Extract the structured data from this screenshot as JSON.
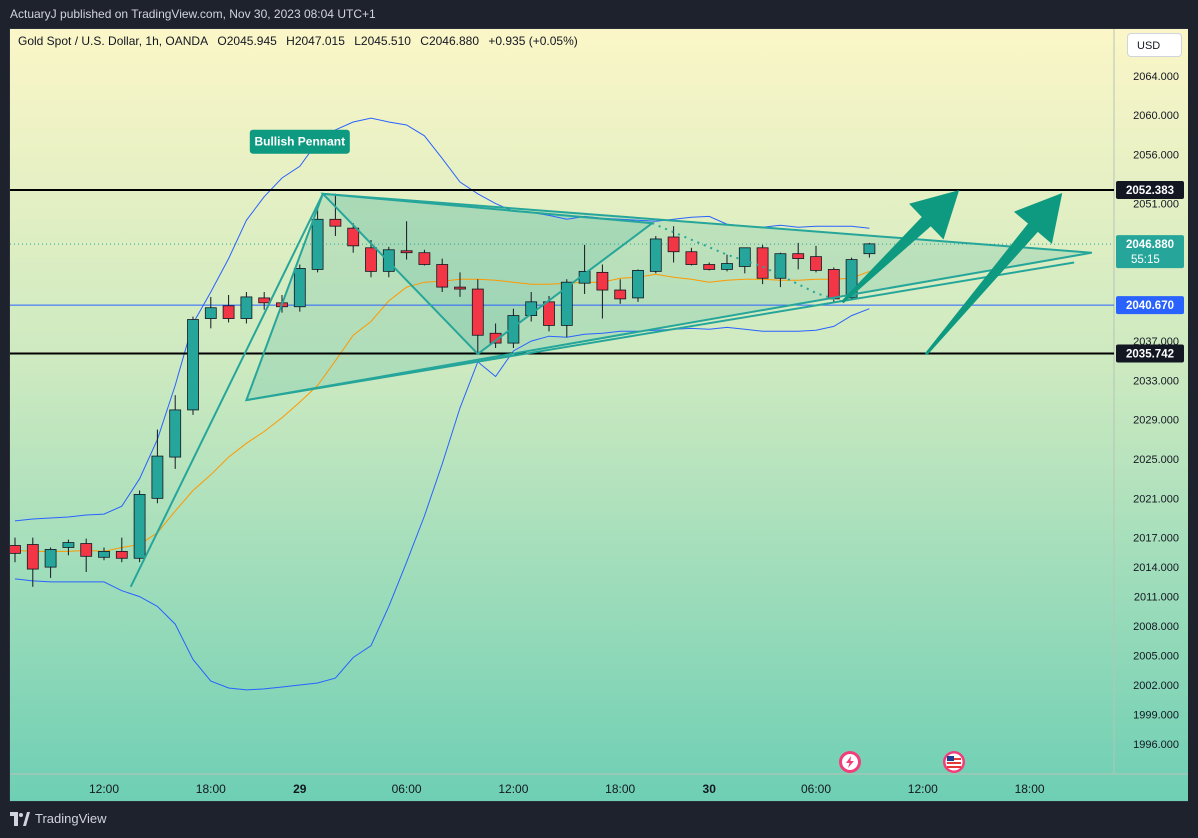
{
  "header": {
    "publish_text": "ActuaryJ published on TradingView.com, Nov 30, 2023 08:04 UTC+1"
  },
  "legend": {
    "symbol": "Gold Spot / U.S. Dollar, 1h, OANDA",
    "open": "O2045.945",
    "high": "H2047.015",
    "low": "L2045.510",
    "close": "C2046.880",
    "change": "+0.935 (+0.05%)"
  },
  "currency_button": "USD",
  "footer": {
    "logo_text": "TradingView"
  },
  "chart_data": {
    "type": "candlestick",
    "ylim": [
      1993.5,
      2068.5
    ],
    "y_ticks": [
      "2064.000",
      "2060.000",
      "2056.000",
      "2051.000",
      "2047.000",
      "2037.000",
      "2033.000",
      "2029.000",
      "2025.000",
      "2021.000",
      "2017.000",
      "2014.000",
      "2011.000",
      "2008.000",
      "2005.000",
      "2002.000",
      "1999.000",
      "1996.000"
    ],
    "y_tick_values": [
      2064,
      2060,
      2056,
      2051,
      2047,
      2037,
      2033,
      2029,
      2025,
      2021,
      2017,
      2014,
      2011,
      2008,
      2005,
      2002,
      1999,
      1996
    ],
    "x_tick_labels": [
      "12:00",
      "18:00",
      "29",
      "06:00",
      "12:00",
      "18:00",
      "30",
      "06:00",
      "12:00",
      "18:00"
    ],
    "x_tick_index": [
      5,
      11,
      16,
      22,
      28,
      34,
      39,
      45,
      51,
      57
    ],
    "candles": [
      {
        "o": 2016.2,
        "h": 2017.0,
        "l": 2014.5,
        "c": 2015.4
      },
      {
        "o": 2016.3,
        "h": 2017.0,
        "l": 2012.0,
        "c": 2013.8
      },
      {
        "o": 2014.0,
        "h": 2016.0,
        "l": 2012.9,
        "c": 2015.8
      },
      {
        "o": 2016.0,
        "h": 2016.8,
        "l": 2015.2,
        "c": 2016.5
      },
      {
        "o": 2016.4,
        "h": 2016.9,
        "l": 2013.5,
        "c": 2015.1
      },
      {
        "o": 2015.0,
        "h": 2016.0,
        "l": 2014.7,
        "c": 2015.6
      },
      {
        "o": 2015.6,
        "h": 2017.0,
        "l": 2014.5,
        "c": 2014.9
      },
      {
        "o": 2014.9,
        "h": 2021.8,
        "l": 2014.5,
        "c": 2021.4
      },
      {
        "o": 2021.0,
        "h": 2028.0,
        "l": 2020.5,
        "c": 2025.3
      },
      {
        "o": 2025.2,
        "h": 2031.5,
        "l": 2024.0,
        "c": 2030.0
      },
      {
        "o": 2030.0,
        "h": 2039.5,
        "l": 2029.5,
        "c": 2039.2
      },
      {
        "o": 2039.3,
        "h": 2041.5,
        "l": 2038.3,
        "c": 2040.4
      },
      {
        "o": 2040.6,
        "h": 2041.7,
        "l": 2038.9,
        "c": 2039.3
      },
      {
        "o": 2039.3,
        "h": 2042.0,
        "l": 2038.8,
        "c": 2041.5
      },
      {
        "o": 2041.4,
        "h": 2042.0,
        "l": 2040.2,
        "c": 2040.9
      },
      {
        "o": 2040.9,
        "h": 2041.7,
        "l": 2039.9,
        "c": 2040.5
      },
      {
        "o": 2040.5,
        "h": 2044.8,
        "l": 2040.0,
        "c": 2044.4
      },
      {
        "o": 2044.3,
        "h": 2050.4,
        "l": 2044.0,
        "c": 2049.4
      },
      {
        "o": 2049.4,
        "h": 2052.0,
        "l": 2047.7,
        "c": 2048.7
      },
      {
        "o": 2048.5,
        "h": 2049.0,
        "l": 2046.0,
        "c": 2046.7
      },
      {
        "o": 2046.5,
        "h": 2047.3,
        "l": 2043.5,
        "c": 2044.1
      },
      {
        "o": 2044.1,
        "h": 2046.6,
        "l": 2043.5,
        "c": 2046.3
      },
      {
        "o": 2046.2,
        "h": 2049.2,
        "l": 2045.3,
        "c": 2046.0
      },
      {
        "o": 2046.0,
        "h": 2046.3,
        "l": 2044.7,
        "c": 2044.8
      },
      {
        "o": 2044.8,
        "h": 2045.4,
        "l": 2042.0,
        "c": 2042.5
      },
      {
        "o": 2042.5,
        "h": 2044.0,
        "l": 2041.5,
        "c": 2042.3
      },
      {
        "o": 2042.3,
        "h": 2043.3,
        "l": 2035.8,
        "c": 2037.6
      },
      {
        "o": 2037.8,
        "h": 2038.8,
        "l": 2036.3,
        "c": 2036.8
      },
      {
        "o": 2036.8,
        "h": 2040.3,
        "l": 2036.3,
        "c": 2039.6
      },
      {
        "o": 2039.6,
        "h": 2042.0,
        "l": 2039.0,
        "c": 2041.0
      },
      {
        "o": 2041.0,
        "h": 2041.6,
        "l": 2038.0,
        "c": 2038.6
      },
      {
        "o": 2038.6,
        "h": 2043.3,
        "l": 2037.4,
        "c": 2043.0
      },
      {
        "o": 2042.9,
        "h": 2046.8,
        "l": 2041.8,
        "c": 2044.1
      },
      {
        "o": 2044.0,
        "h": 2044.8,
        "l": 2039.3,
        "c": 2042.2
      },
      {
        "o": 2042.2,
        "h": 2043.3,
        "l": 2040.8,
        "c": 2041.3
      },
      {
        "o": 2041.4,
        "h": 2044.3,
        "l": 2041.0,
        "c": 2044.2
      },
      {
        "o": 2044.1,
        "h": 2047.7,
        "l": 2043.9,
        "c": 2047.4
      },
      {
        "o": 2047.6,
        "h": 2048.7,
        "l": 2045.0,
        "c": 2046.1
      },
      {
        "o": 2046.1,
        "h": 2046.5,
        "l": 2044.7,
        "c": 2044.8
      },
      {
        "o": 2044.8,
        "h": 2045.0,
        "l": 2044.2,
        "c": 2044.3
      },
      {
        "o": 2044.3,
        "h": 2045.8,
        "l": 2044.1,
        "c": 2044.9
      },
      {
        "o": 2044.6,
        "h": 2046.5,
        "l": 2043.9,
        "c": 2046.5
      },
      {
        "o": 2046.5,
        "h": 2046.8,
        "l": 2042.8,
        "c": 2043.4
      },
      {
        "o": 2043.4,
        "h": 2046.0,
        "l": 2042.5,
        "c": 2045.9
      },
      {
        "o": 2045.9,
        "h": 2047.0,
        "l": 2044.3,
        "c": 2045.4
      },
      {
        "o": 2045.6,
        "h": 2046.7,
        "l": 2044.0,
        "c": 2044.2
      },
      {
        "o": 2044.3,
        "h": 2044.5,
        "l": 2041.0,
        "c": 2041.3
      },
      {
        "o": 2041.4,
        "h": 2045.5,
        "l": 2041.2,
        "c": 2045.3
      },
      {
        "o": 2045.9,
        "h": 2047.0,
        "l": 2045.5,
        "c": 2046.9
      }
    ],
    "upper_band": [
      2018.7,
      2018.9,
      2019.0,
      2019.1,
      2019.3,
      2019.4,
      2020.2,
      2023.0,
      2027.0,
      2032.5,
      2038.8,
      2042.0,
      2045.4,
      2049.3,
      2051.7,
      2053.6,
      2054.8,
      2057.3,
      2058.5,
      2059.3,
      2059.7,
      2059.3,
      2059.0,
      2057.9,
      2055.6,
      2053.2,
      2052.0,
      2051.0,
      2050.2,
      2050.1,
      2049.8,
      2049.4,
      2049.7,
      2049.5,
      2049.4,
      2049.3,
      2049.2,
      2049.4,
      2049.6,
      2049.7,
      2048.9,
      2048.7,
      2048.6,
      2048.8,
      2048.6,
      2048.7,
      2048.7,
      2048.7,
      2048.5
    ],
    "lower_band": [
      2012.8,
      2012.6,
      2012.5,
      2012.5,
      2012.5,
      2012.5,
      2011.6,
      2011.0,
      2010.0,
      2008.2,
      2004.6,
      2002.4,
      2001.7,
      2001.5,
      2001.6,
      2001.8,
      2002.0,
      2002.2,
      2002.7,
      2004.8,
      2006.0,
      2010.0,
      2014.5,
      2019.2,
      2024.5,
      2030.2,
      2034.9,
      2033.4,
      2036.0,
      2037.0,
      2037.5,
      2037.4,
      2037.7,
      2037.8,
      2038.0,
      2038.0,
      2038.1,
      2038.2,
      2038.3,
      2038.2,
      2038.4,
      2038.2,
      2038.0,
      2038.0,
      2038.0,
      2038.1,
      2038.5,
      2039.6,
      2040.3
    ],
    "sma": [
      2015.7,
      2015.6,
      2015.6,
      2015.6,
      2015.7,
      2015.6,
      2016.0,
      2016.3,
      2017.5,
      2019.7,
      2021.8,
      2023.4,
      2025.2,
      2026.6,
      2027.8,
      2029.2,
      2030.8,
      2032.5,
      2035.0,
      2037.6,
      2039.0,
      2041.1,
      2042.5,
      2043.0,
      2043.1,
      2043.3,
      2043.3,
      2043.2,
      2043.0,
      2042.8,
      2042.8,
      2042.9,
      2043.0,
      2043.0,
      2043.4,
      2043.5,
      2043.8,
      2043.5,
      2043.3,
      2043.0,
      2043.2,
      2043.3,
      2043.3,
      2043.2,
      2043.2,
      2043.3,
      2043.3,
      2043.4,
      2044.1
    ],
    "levels": [
      {
        "label": "2052.383",
        "value": 2052.383,
        "style": "black"
      },
      {
        "label": "2040.670",
        "value": 2040.67,
        "style": "blue"
      },
      {
        "label": "2035.742",
        "value": 2035.742,
        "style": "black"
      }
    ],
    "last_price": {
      "label": "2046.880",
      "value": 2046.88,
      "countdown": "55:15"
    },
    "pattern": {
      "label": "Bullish Pennant",
      "flagpole": [
        {
          "i": 6.5,
          "p": 2012.0
        },
        {
          "i": 17.3,
          "p": 2052.0
        }
      ],
      "outer_triangle": [
        {
          "i": 13.0,
          "p": 2031.0
        },
        {
          "i": 17.3,
          "p": 2052.0
        },
        {
          "i": 60.5,
          "p": 2046.0
        }
      ],
      "lower_line": [
        {
          "i": 13.0,
          "p": 2031.0
        },
        {
          "i": 59.5,
          "p": 2045.0
        }
      ],
      "inner_triangle": [
        {
          "i": 17.3,
          "p": 2052.0
        },
        {
          "i": 26.0,
          "p": 2035.7
        },
        {
          "i": 35.8,
          "p": 2049.0
        }
      ],
      "dotted_path": [
        {
          "i": 35.8,
          "p": 2049.0
        },
        {
          "i": 40.0,
          "p": 2045.8
        },
        {
          "i": 42.0,
          "p": 2044.6
        },
        {
          "i": 45.0,
          "p": 2041.9
        },
        {
          "i": 46.5,
          "p": 2041.0
        }
      ]
    },
    "arrows": [
      {
        "from": {
          "i": 46.5,
          "p": 2041.0
        },
        "to": {
          "i": 53.0,
          "p": 2052.3
        }
      },
      {
        "from": {
          "i": 51.2,
          "p": 2035.7
        },
        "to": {
          "i": 58.8,
          "p": 2052.0
        }
      }
    ]
  }
}
